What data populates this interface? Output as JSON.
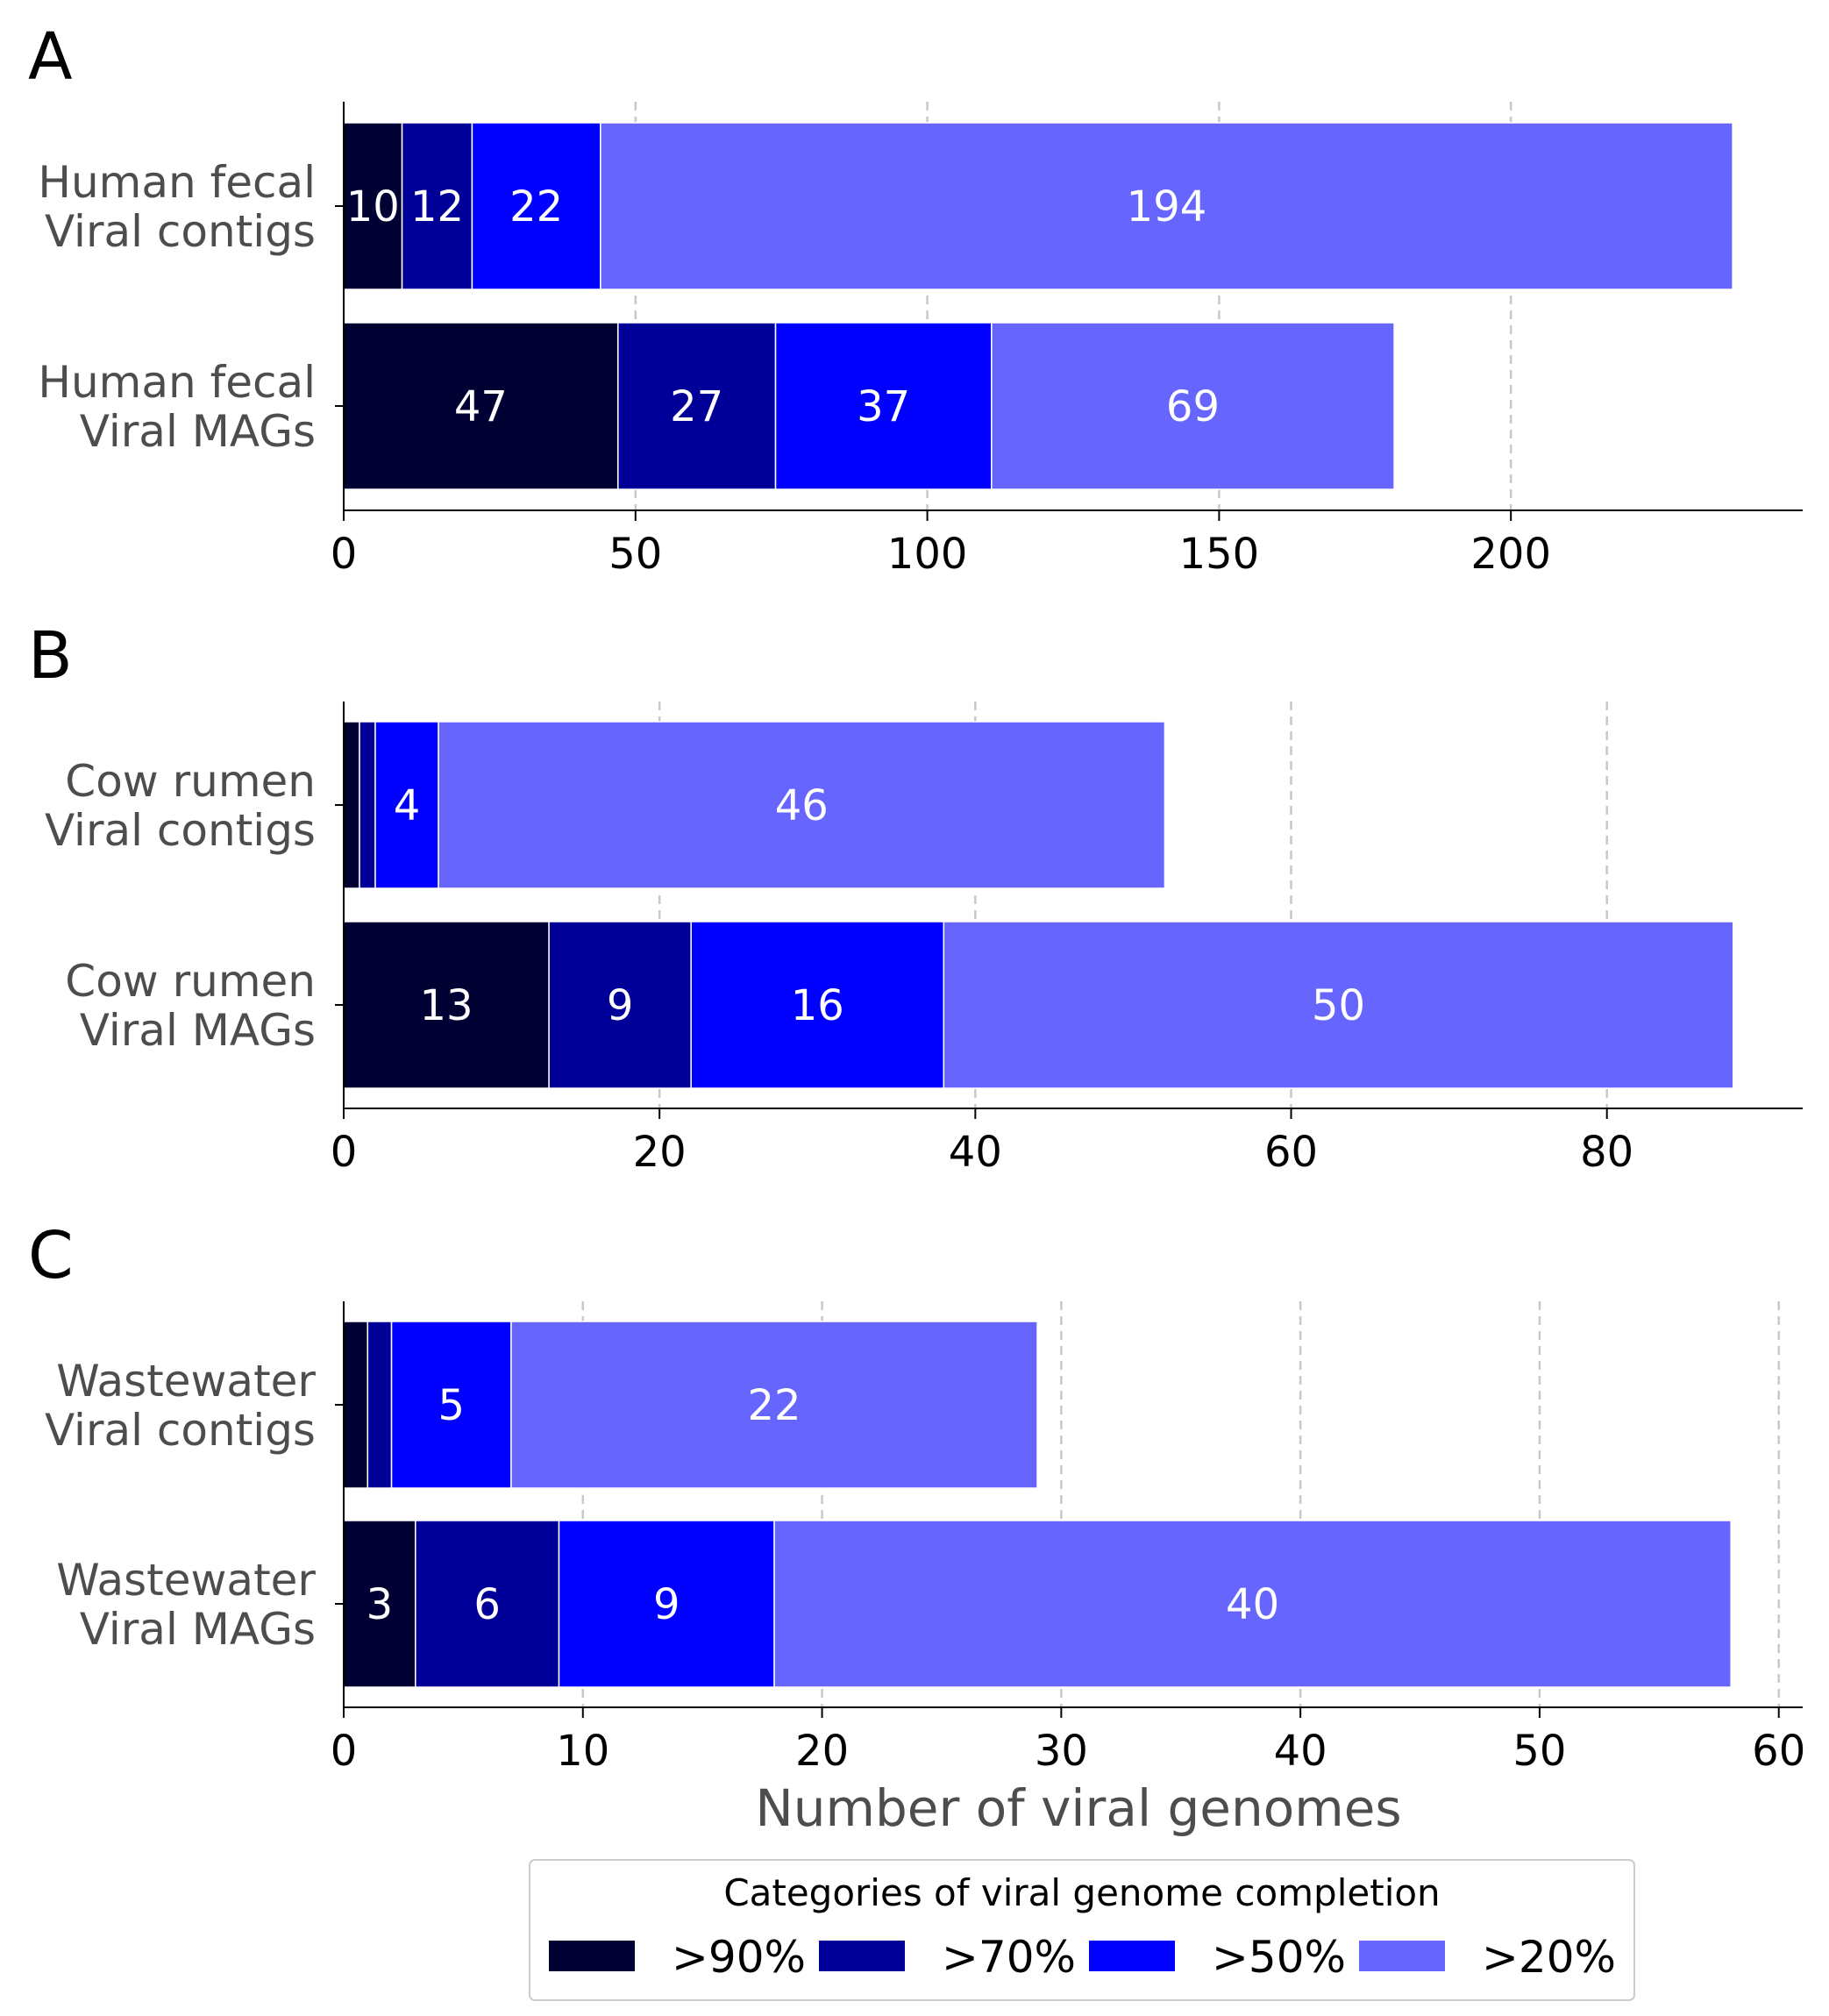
{
  "chart_data": [
    {
      "type": "bar",
      "orientation": "horizontal",
      "stacked": true,
      "panel": "A",
      "categories": [
        "Human fecal\nViral contigs",
        "Human fecal\nViral MAGs"
      ],
      "series": [
        {
          "name": ">90%",
          "values": [
            10,
            47
          ]
        },
        {
          "name": ">70%",
          "values": [
            12,
            27
          ]
        },
        {
          "name": ">50%",
          "values": [
            22,
            37
          ]
        },
        {
          "name": ">20%",
          "values": [
            194,
            69
          ]
        }
      ],
      "data_labels": [
        [
          "10",
          "12",
          "22",
          "194"
        ],
        [
          "47",
          "27",
          "37",
          "69"
        ]
      ],
      "xlim": [
        0,
        250
      ],
      "xticks": [
        0,
        50,
        100,
        150,
        200
      ],
      "grid": "vertical-dashed",
      "xlabel": ""
    },
    {
      "type": "bar",
      "orientation": "horizontal",
      "stacked": true,
      "panel": "B",
      "categories": [
        "Cow rumen\nViral contigs",
        "Cow rumen\nViral MAGs"
      ],
      "series": [
        {
          "name": ">90%",
          "values": [
            1,
            13
          ]
        },
        {
          "name": ">70%",
          "values": [
            1,
            9
          ]
        },
        {
          "name": ">50%",
          "values": [
            4,
            16
          ]
        },
        {
          "name": ">20%",
          "values": [
            46,
            50
          ]
        }
      ],
      "data_labels": [
        [
          "",
          "",
          "4",
          "46"
        ],
        [
          "13",
          "9",
          "16",
          "50"
        ]
      ],
      "xlim": [
        0,
        92.4
      ],
      "xticks": [
        0,
        20,
        40,
        60,
        80
      ],
      "grid": "vertical-dashed",
      "xlabel": ""
    },
    {
      "type": "bar",
      "orientation": "horizontal",
      "stacked": true,
      "panel": "C",
      "categories": [
        "Wastewater\nViral contigs",
        "Wastewater\nViral MAGs"
      ],
      "series": [
        {
          "name": ">90%",
          "values": [
            1,
            3
          ]
        },
        {
          "name": ">70%",
          "values": [
            1,
            6
          ]
        },
        {
          "name": ">50%",
          "values": [
            5,
            9
          ]
        },
        {
          "name": ">20%",
          "values": [
            22,
            40
          ]
        }
      ],
      "data_labels": [
        [
          "",
          "",
          "5",
          "22"
        ],
        [
          "3",
          "6",
          "9",
          "40"
        ]
      ],
      "xlim": [
        0,
        61
      ],
      "xticks": [
        0,
        10,
        20,
        30,
        40,
        50,
        60
      ],
      "grid": "vertical-dashed",
      "xlabel": "Number of viral genomes"
    }
  ],
  "legend": {
    "title": "Categories of viral genome completion",
    "placement": "bottom-center",
    "items": [
      {
        "label": ">90%",
        "color": "#000033"
      },
      {
        "label": ">70%",
        "color": "#000099"
      },
      {
        "label": ">50%",
        "color": "#0000ff"
      },
      {
        "label": ">20%",
        "color": "#6666ff"
      }
    ]
  },
  "colors": [
    "#000033",
    "#000099",
    "#0000ff",
    "#6666ff"
  ]
}
